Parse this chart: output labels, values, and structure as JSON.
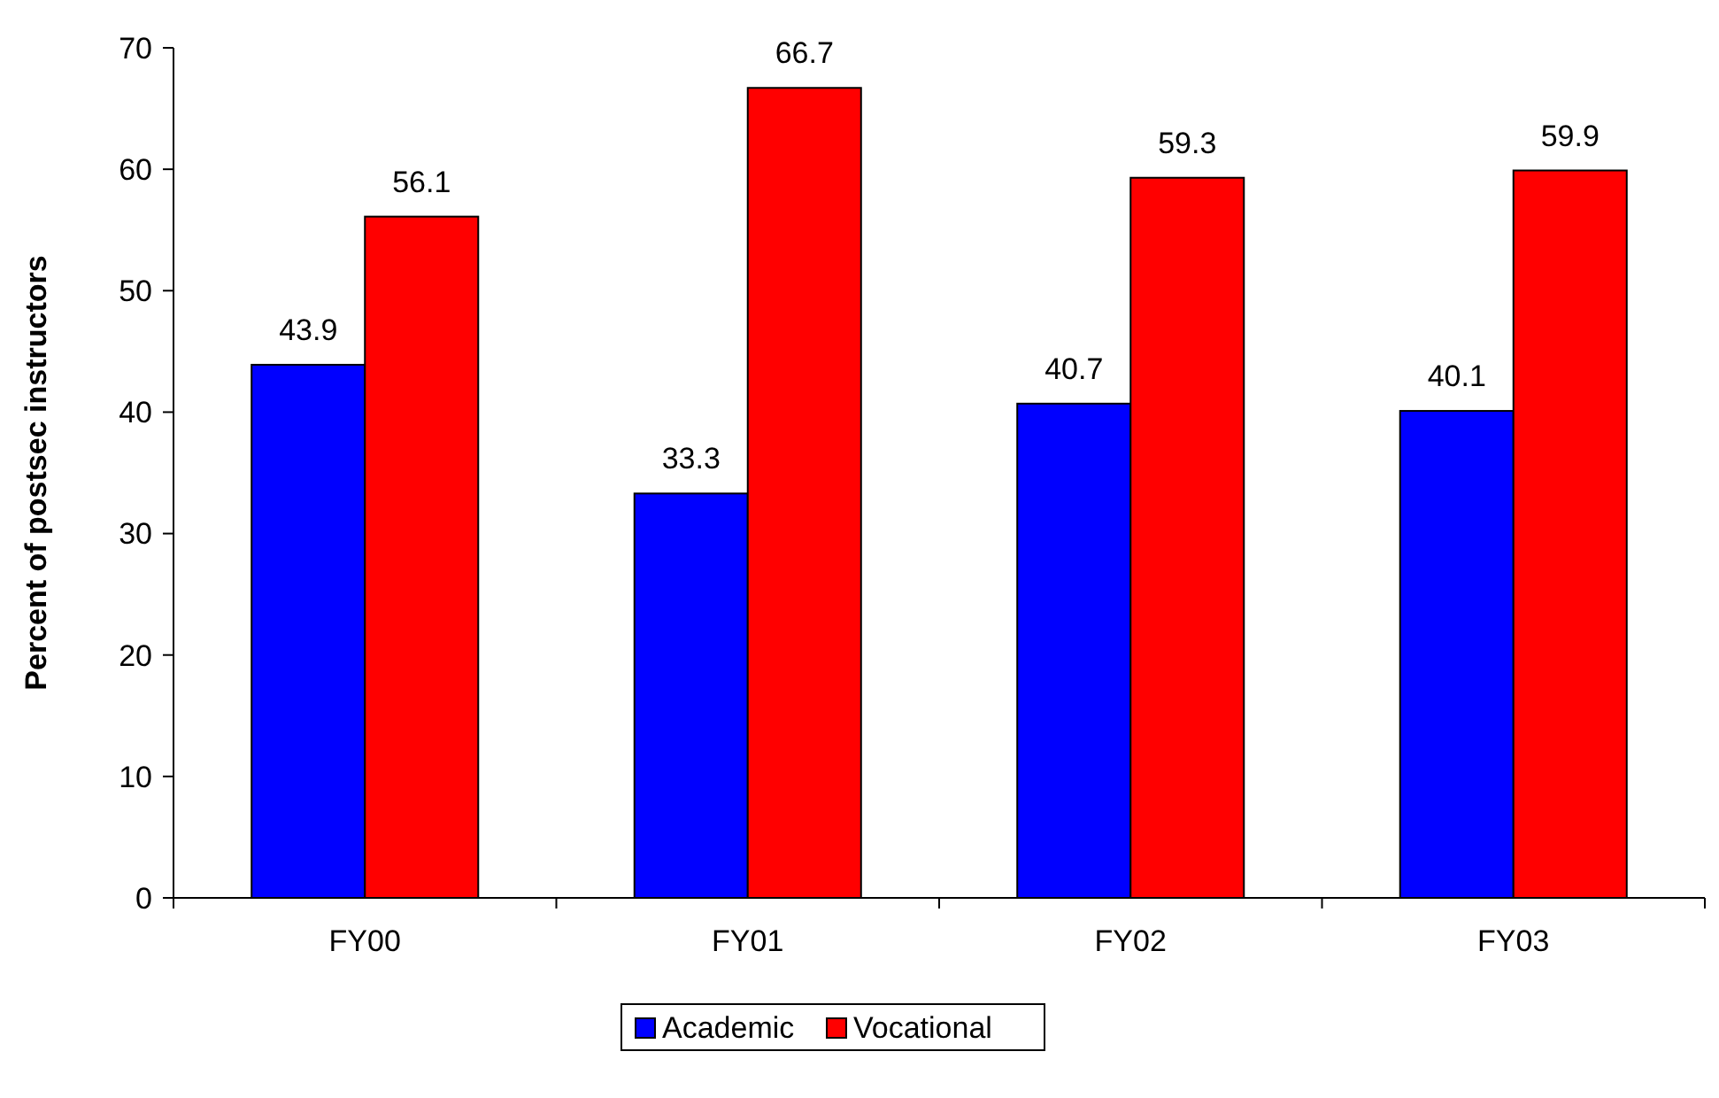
{
  "chart_data": {
    "type": "bar",
    "ylabel": "Percent of postsec instructors",
    "categories": [
      "FY00",
      "FY01",
      "FY02",
      "FY03"
    ],
    "series": [
      {
        "name": "Academic",
        "color": "#0000ff",
        "values": [
          43.9,
          33.3,
          40.7,
          40.1
        ]
      },
      {
        "name": "Vocational",
        "color": "#ff0000",
        "values": [
          56.1,
          66.7,
          59.3,
          59.9
        ]
      }
    ],
    "ylim": [
      0,
      70
    ],
    "yticks": [
      0,
      10,
      20,
      30,
      40,
      50,
      60,
      70
    ],
    "data_labels": true,
    "grid": false,
    "legend": "bottom"
  }
}
